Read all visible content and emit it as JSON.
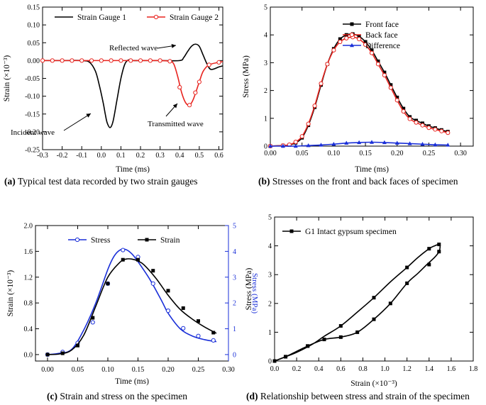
{
  "captions": {
    "a": {
      "tag": "(a)",
      "text": "Typical test data recorded by two strain gauges"
    },
    "b": {
      "tag": "(b)",
      "text": "Stresses on the front and back faces of specimen"
    },
    "c": {
      "tag": "(c)",
      "text": "Strain and stress on the specimen"
    },
    "d": {
      "tag": "(d)",
      "text": "Relationship between stress and strain of the specimen"
    }
  },
  "colors": {
    "black": "#000000",
    "red": "#e8241f",
    "blue": "#1a2fd8"
  },
  "chart_data": [
    {
      "id": "a",
      "type": "line",
      "xlabel": "Time (ms)",
      "ylabel": "Strain (×10⁻³)",
      "xlim": [
        -0.3,
        0.62
      ],
      "ylim": [
        -0.25,
        0.15
      ],
      "xticks": [
        -0.3,
        -0.2,
        -0.1,
        0.0,
        0.1,
        0.2,
        0.3,
        0.4,
        0.5,
        0.6
      ],
      "xtick_labels": [
        "-0.3",
        "-0.2",
        "-0.1",
        "0.0",
        "0.1",
        "0.2",
        "0.3",
        "0.4",
        "0.5",
        "0.6"
      ],
      "yticks": [
        -0.25,
        -0.2,
        -0.15,
        -0.1,
        -0.05,
        0.0,
        0.05,
        0.1,
        0.15
      ],
      "ytick_labels": [
        "-0.25",
        "-0.20",
        "-0.15",
        "-0.10",
        "-0.05",
        "0.00",
        "0.05",
        "0.10",
        "0.15"
      ],
      "legend_position": "top",
      "series": [
        {
          "name": "Strain Gauge 1",
          "color": "#000000",
          "marker": "none",
          "x": [
            -0.3,
            -0.2,
            -0.1,
            -0.06,
            -0.03,
            -0.01,
            0.01,
            0.02,
            0.03,
            0.045,
            0.06,
            0.08,
            0.1,
            0.12,
            0.14,
            0.16,
            0.2,
            0.3,
            0.4,
            0.42,
            0.44,
            0.46,
            0.48,
            0.5,
            0.52,
            0.54,
            0.56,
            0.6,
            0.62
          ],
          "y": [
            0,
            0,
            0,
            -0.005,
            -0.03,
            -0.07,
            -0.12,
            -0.15,
            -0.175,
            -0.188,
            -0.17,
            -0.11,
            -0.05,
            -0.01,
            0.002,
            0,
            0,
            0,
            0,
            0.008,
            0.025,
            0.04,
            0.046,
            0.04,
            0.015,
            -0.01,
            -0.025,
            -0.018,
            -0.015
          ]
        },
        {
          "name": "Strain Gauge 2",
          "color": "#e8241f",
          "marker": "open-circle",
          "x": [
            -0.3,
            -0.2,
            -0.1,
            0.0,
            0.1,
            0.2,
            0.3,
            0.35,
            0.37,
            0.39,
            0.41,
            0.43,
            0.45,
            0.47,
            0.5,
            0.52,
            0.55,
            0.6,
            0.62
          ],
          "y": [
            0,
            0,
            0,
            0,
            0,
            0,
            0,
            -0.002,
            -0.01,
            -0.045,
            -0.09,
            -0.118,
            -0.125,
            -0.108,
            -0.06,
            -0.03,
            -0.012,
            -0.005,
            -0.003
          ],
          "marker_x": [
            -0.3,
            -0.25,
            -0.2,
            -0.15,
            -0.1,
            -0.05,
            0.0,
            0.05,
            0.1,
            0.15,
            0.2,
            0.25,
            0.3,
            0.35,
            0.4,
            0.45,
            0.48,
            0.5,
            0.55,
            0.6
          ],
          "marker_y": [
            0,
            0,
            0,
            0,
            0,
            0,
            0,
            0,
            0,
            0,
            0,
            0,
            0,
            -0.002,
            -0.075,
            -0.125,
            -0.09,
            -0.06,
            -0.012,
            -0.005
          ]
        }
      ],
      "annotations": [
        {
          "text": "Reflected wave",
          "at": [
            0.44,
            0.035
          ]
        },
        {
          "text": "Incident wave",
          "at": [
            0.03,
            -0.175
          ]
        },
        {
          "text": "Transmitted wave",
          "at": [
            0.43,
            -0.135
          ]
        }
      ]
    },
    {
      "id": "b",
      "type": "line",
      "xlabel": "Time (ms)",
      "ylabel": "Stress (MPa)",
      "xlim": [
        0,
        0.32
      ],
      "ylim": [
        0,
        5
      ],
      "xticks": [
        0,
        0.05,
        0.1,
        0.15,
        0.2,
        0.25,
        0.3
      ],
      "xtick_labels": [
        "0.00",
        "0.05",
        "0.10",
        "0.15",
        "0.20",
        "0.25",
        "0.30"
      ],
      "yticks": [
        0,
        1,
        2,
        3,
        4,
        5
      ],
      "ytick_labels": [
        "0",
        "1",
        "2",
        "3",
        "4",
        "5"
      ],
      "legend_position": "top-right",
      "series": [
        {
          "name": "Front face",
          "color": "#000000",
          "marker": "filled-square",
          "x": [
            0.0,
            0.02,
            0.03,
            0.04,
            0.05,
            0.06,
            0.07,
            0.08,
            0.09,
            0.1,
            0.11,
            0.12,
            0.13,
            0.14,
            0.15,
            0.16,
            0.17,
            0.18,
            0.19,
            0.2,
            0.21,
            0.22,
            0.23,
            0.24,
            0.25,
            0.26,
            0.27,
            0.28
          ],
          "y": [
            0.0,
            0.02,
            0.04,
            0.12,
            0.3,
            0.75,
            1.4,
            2.2,
            2.95,
            3.5,
            3.85,
            4.0,
            4.03,
            3.95,
            3.75,
            3.45,
            3.05,
            2.65,
            2.2,
            1.75,
            1.35,
            1.05,
            0.92,
            0.82,
            0.72,
            0.65,
            0.58,
            0.52
          ]
        },
        {
          "name": "Back face",
          "color": "#e8241f",
          "marker": "open-circle",
          "x": [
            0.0,
            0.02,
            0.03,
            0.04,
            0.05,
            0.06,
            0.07,
            0.08,
            0.09,
            0.1,
            0.11,
            0.12,
            0.13,
            0.14,
            0.15,
            0.16,
            0.17,
            0.18,
            0.19,
            0.2,
            0.21,
            0.22,
            0.23,
            0.24,
            0.25,
            0.26,
            0.27,
            0.28
          ],
          "y": [
            0.0,
            0.02,
            0.05,
            0.15,
            0.35,
            0.8,
            1.45,
            2.25,
            2.95,
            3.45,
            3.75,
            3.88,
            3.92,
            3.85,
            3.65,
            3.35,
            2.95,
            2.55,
            2.1,
            1.65,
            1.25,
            0.98,
            0.85,
            0.75,
            0.66,
            0.6,
            0.54,
            0.48
          ]
        },
        {
          "name": "Difference",
          "color": "#1a2fd8",
          "marker": "filled-triangle",
          "x": [
            0.0,
            0.02,
            0.04,
            0.06,
            0.08,
            0.1,
            0.12,
            0.14,
            0.16,
            0.18,
            0.2,
            0.22,
            0.24,
            0.26,
            0.28
          ],
          "y": [
            0.0,
            0.0,
            0.0,
            0.02,
            0.04,
            0.07,
            0.11,
            0.13,
            0.14,
            0.13,
            0.11,
            0.09,
            0.07,
            0.05,
            0.04
          ]
        }
      ]
    },
    {
      "id": "c",
      "type": "line",
      "xlabel": "Time (ms)",
      "ylabel": "Strain (×10⁻³)",
      "y2label": "Stress (MPa)",
      "xlim": [
        -0.02,
        0.3
      ],
      "ylim": [
        -0.1,
        2.0
      ],
      "y2lim": [
        -0.25,
        5
      ],
      "xticks": [
        0,
        0.05,
        0.1,
        0.15,
        0.2,
        0.25,
        0.3
      ],
      "xtick_labels": [
        "0.00",
        "0.05",
        "0.10",
        "0.15",
        "0.20",
        "0.25",
        "0.30"
      ],
      "yticks": [
        0,
        0.4,
        0.8,
        1.2,
        1.6,
        2.0
      ],
      "ytick_labels": [
        "0.0",
        "0.4",
        "0.8",
        "1.2",
        "1.6",
        "2.0"
      ],
      "y2ticks": [
        0,
        1,
        2,
        3,
        4,
        5
      ],
      "y2tick_labels": [
        "0",
        "1",
        "2",
        "3",
        "4",
        "5"
      ],
      "legend_position": "top",
      "series": [
        {
          "name": "Stress",
          "color": "#1a2fd8",
          "marker": "open-circle",
          "axis": "right",
          "x": [
            0.0,
            0.02,
            0.04,
            0.06,
            0.08,
            0.1,
            0.11,
            0.12,
            0.13,
            0.14,
            0.15,
            0.17,
            0.19,
            0.2,
            0.22,
            0.24,
            0.26,
            0.28
          ],
          "y": [
            0.0,
            0.05,
            0.2,
            0.95,
            2.0,
            3.3,
            3.8,
            4.05,
            4.07,
            3.9,
            3.6,
            2.9,
            2.05,
            1.6,
            1.0,
            0.72,
            0.58,
            0.5
          ],
          "marker_x": [
            0.0,
            0.025,
            0.05,
            0.075,
            0.1,
            0.125,
            0.15,
            0.175,
            0.2,
            0.225,
            0.25,
            0.275
          ],
          "marker_y": [
            0.0,
            0.1,
            0.45,
            1.25,
            2.75,
            4.05,
            3.78,
            2.75,
            1.7,
            1.02,
            0.72,
            0.55
          ]
        },
        {
          "name": "Strain",
          "color": "#000000",
          "marker": "filled-square",
          "axis": "left",
          "x": [
            0.0,
            0.02,
            0.04,
            0.06,
            0.08,
            0.1,
            0.12,
            0.13,
            0.14,
            0.15,
            0.16,
            0.18,
            0.2,
            0.22,
            0.24,
            0.26,
            0.28
          ],
          "y": [
            0.0,
            0.01,
            0.07,
            0.3,
            0.75,
            1.2,
            1.43,
            1.48,
            1.48,
            1.45,
            1.39,
            1.18,
            0.92,
            0.7,
            0.55,
            0.43,
            0.33
          ],
          "marker_x": [
            0.0,
            0.025,
            0.05,
            0.075,
            0.1,
            0.125,
            0.15,
            0.175,
            0.2,
            0.225,
            0.25,
            0.275
          ],
          "marker_y": [
            0.0,
            0.02,
            0.14,
            0.57,
            1.1,
            1.47,
            1.47,
            1.3,
            0.99,
            0.72,
            0.52,
            0.34
          ]
        }
      ]
    },
    {
      "id": "d",
      "type": "line",
      "xlabel": "Strain (×10⁻³)",
      "ylabel": "Stress (MPa)",
      "xlim": [
        0,
        1.8
      ],
      "ylim": [
        0,
        5
      ],
      "xticks": [
        0,
        0.2,
        0.4,
        0.6,
        0.8,
        1.0,
        1.2,
        1.4,
        1.6,
        1.8
      ],
      "xtick_labels": [
        "0.0",
        "0.2",
        "0.4",
        "0.6",
        "0.8",
        "1.0",
        "1.2",
        "1.4",
        "1.6",
        "1.8"
      ],
      "yticks": [
        0,
        1,
        2,
        3,
        4,
        5
      ],
      "ytick_labels": [
        "0",
        "1",
        "2",
        "3",
        "4",
        "5"
      ],
      "legend_position": "top-left",
      "series": [
        {
          "name": "G1 Intact gypsum specimen",
          "color": "#000000",
          "marker": "filled-square",
          "x": [
            0.0,
            0.1,
            0.3,
            0.45,
            0.6,
            0.75,
            0.9,
            1.05,
            1.2,
            1.3,
            1.38,
            1.45,
            1.49,
            1.5,
            1.49,
            1.45,
            1.4,
            1.3,
            1.2,
            1.05,
            0.9,
            0.75,
            0.6,
            0.45,
            0.35,
            0.2,
            0.1,
            0.0
          ],
          "y": [
            0.0,
            0.15,
            0.52,
            0.75,
            0.83,
            1.0,
            1.45,
            2.0,
            2.7,
            3.05,
            3.35,
            3.6,
            3.8,
            4.0,
            4.05,
            4.0,
            3.9,
            3.6,
            3.25,
            2.75,
            2.2,
            1.7,
            1.22,
            0.86,
            0.6,
            0.3,
            0.15,
            0.0
          ],
          "marker_x": [
            0.0,
            0.1,
            0.3,
            0.45,
            0.6,
            0.75,
            0.9,
            1.05,
            1.2,
            1.4,
            1.49,
            1.49,
            1.4,
            1.2,
            0.9,
            0.6,
            0.3,
            0.1,
            0.0
          ],
          "marker_y": [
            0.0,
            0.15,
            0.52,
            0.75,
            0.83,
            1.0,
            1.45,
            2.0,
            2.7,
            3.35,
            3.8,
            4.05,
            3.9,
            3.25,
            2.2,
            1.22,
            0.52,
            0.15,
            0.0
          ]
        }
      ]
    }
  ]
}
